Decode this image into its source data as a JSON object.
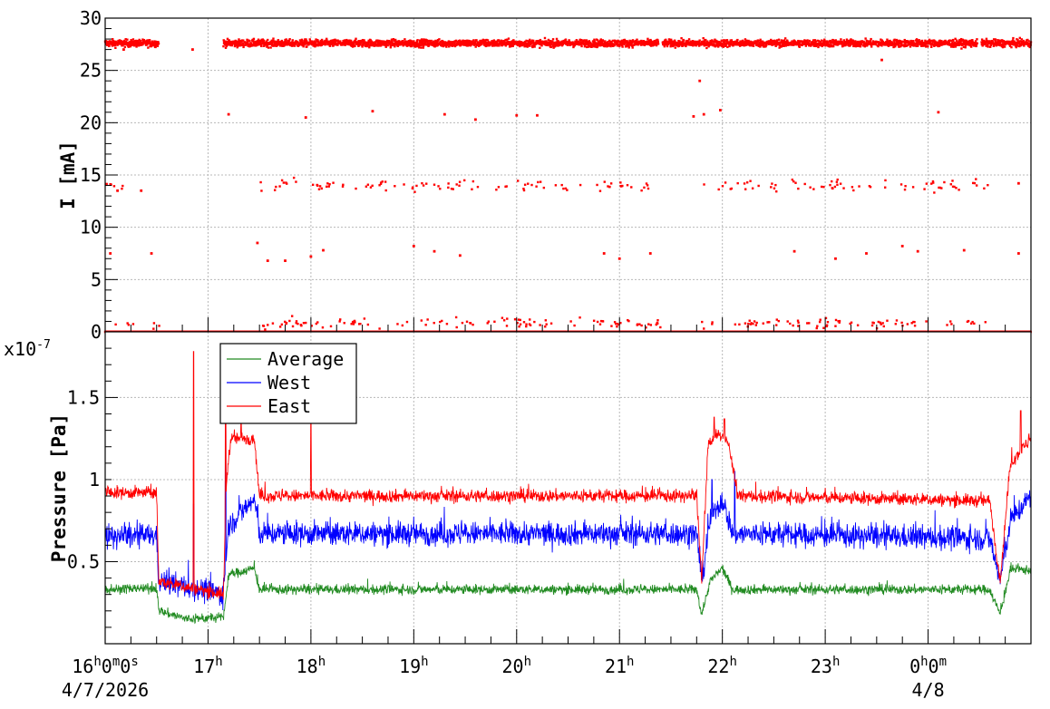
{
  "chart_data": [
    {
      "type": "scatter",
      "panel": "current",
      "ylabel": "I [mA]",
      "ylim": [
        0,
        30
      ],
      "yticks": [
        0,
        5,
        10,
        15,
        20,
        25,
        30
      ],
      "grid": true,
      "series": [
        {
          "color": "#ff0000",
          "clusters": [
            {
              "level": 27.6,
              "spread": 0.35,
              "segments": [
                [
                  0.0,
                  0.52
                ],
                [
                  1.15,
                  5.38
                ],
                [
                  5.42,
                  8.48
                ],
                [
                  8.52,
                  9.0
                ]
              ]
            },
            {
              "level": 14.0,
              "spread": 0.6,
              "segments": [
                [
                  0.0,
                  0.2
                ],
                [
                  1.5,
                  5.4
                ],
                [
                  5.8,
                  8.6
                ]
              ],
              "density": 0.06
            },
            {
              "level": 0.0,
              "spread": 0.0,
              "segments": [
                [
                  0.0,
                  9.0
                ]
              ]
            },
            {
              "level": 0.8,
              "spread": 0.5,
              "segments": [
                [
                  0.0,
                  0.6
                ],
                [
                  1.5,
                  5.4
                ],
                [
                  5.8,
                  8.6
                ]
              ],
              "density": 0.06
            }
          ],
          "outliers": [
            {
              "x": 0.05,
              "y": 7.5
            },
            {
              "x": 0.45,
              "y": 7.5
            },
            {
              "x": 0.12,
              "y": 13.5
            },
            {
              "x": 0.35,
              "y": 13.5
            },
            {
              "x": 0.85,
              "y": 27.0
            },
            {
              "x": 1.2,
              "y": 20.8
            },
            {
              "x": 1.48,
              "y": 8.5
            },
            {
              "x": 1.58,
              "y": 6.8
            },
            {
              "x": 1.75,
              "y": 6.8
            },
            {
              "x": 1.95,
              "y": 20.5
            },
            {
              "x": 2.0,
              "y": 7.2
            },
            {
              "x": 2.12,
              "y": 7.8
            },
            {
              "x": 2.6,
              "y": 21.1
            },
            {
              "x": 3.0,
              "y": 8.2
            },
            {
              "x": 3.2,
              "y": 7.7
            },
            {
              "x": 3.3,
              "y": 20.8
            },
            {
              "x": 3.45,
              "y": 7.3
            },
            {
              "x": 3.6,
              "y": 20.3
            },
            {
              "x": 4.0,
              "y": 20.7
            },
            {
              "x": 4.2,
              "y": 20.7
            },
            {
              "x": 4.85,
              "y": 7.5
            },
            {
              "x": 5.0,
              "y": 7.0
            },
            {
              "x": 5.3,
              "y": 7.5
            },
            {
              "x": 5.72,
              "y": 20.6
            },
            {
              "x": 5.78,
              "y": 24.0
            },
            {
              "x": 5.82,
              "y": 20.8
            },
            {
              "x": 5.98,
              "y": 21.2
            },
            {
              "x": 6.7,
              "y": 7.7
            },
            {
              "x": 7.1,
              "y": 7.0
            },
            {
              "x": 7.4,
              "y": 7.5
            },
            {
              "x": 7.55,
              "y": 26.0
            },
            {
              "x": 7.75,
              "y": 8.2
            },
            {
              "x": 7.9,
              "y": 7.7
            },
            {
              "x": 8.1,
              "y": 21.0
            },
            {
              "x": 8.35,
              "y": 7.8
            },
            {
              "x": 8.88,
              "y": 7.5
            },
            {
              "x": 8.88,
              "y": 14.2
            },
            {
              "x": 0.18,
              "y": 27.0
            }
          ]
        }
      ]
    },
    {
      "type": "line",
      "panel": "pressure",
      "ylabel": "Pressure [Pa]",
      "multiplier": "x10",
      "multiplier_exp": "-7",
      "ylim": [
        0,
        1.9
      ],
      "yticks": [
        0.5,
        1,
        1.5
      ],
      "ytick_labels": [
        "0.5",
        "1",
        "1.5"
      ],
      "grid": true,
      "legend_position": "top-left",
      "series": [
        {
          "name": "Average",
          "color": "#228b22",
          "knots": [
            [
              0.0,
              0.33
            ],
            [
              0.5,
              0.34
            ],
            [
              0.52,
              0.2
            ],
            [
              0.8,
              0.15
            ],
            [
              1.15,
              0.16
            ],
            [
              1.2,
              0.42
            ],
            [
              1.45,
              0.46
            ],
            [
              1.5,
              0.33
            ],
            [
              5.75,
              0.33
            ],
            [
              5.8,
              0.18
            ],
            [
              5.88,
              0.38
            ],
            [
              6.0,
              0.46
            ],
            [
              6.1,
              0.33
            ],
            [
              8.6,
              0.33
            ],
            [
              8.7,
              0.18
            ],
            [
              8.8,
              0.45
            ],
            [
              9.0,
              0.45
            ]
          ],
          "noise": 0.03,
          "spikes": []
        },
        {
          "name": "West",
          "color": "#0000ff",
          "knots": [
            [
              0.0,
              0.65
            ],
            [
              0.5,
              0.66
            ],
            [
              0.52,
              0.38
            ],
            [
              1.15,
              0.3
            ],
            [
              1.2,
              0.72
            ],
            [
              1.45,
              0.88
            ],
            [
              1.5,
              0.67
            ],
            [
              5.75,
              0.67
            ],
            [
              5.8,
              0.38
            ],
            [
              5.88,
              0.75
            ],
            [
              6.0,
              0.88
            ],
            [
              6.1,
              0.67
            ],
            [
              8.6,
              0.64
            ],
            [
              8.7,
              0.38
            ],
            [
              8.8,
              0.75
            ],
            [
              9.0,
              0.9
            ]
          ],
          "noise": 0.075,
          "spikes": [
            [
              0.86,
              0.85
            ],
            [
              1.17,
              1.55
            ],
            [
              5.9,
              1.0
            ],
            [
              6.12,
              1.05
            ]
          ]
        },
        {
          "name": "East",
          "color": "#ff0000",
          "knots": [
            [
              0.0,
              0.92
            ],
            [
              0.5,
              0.92
            ],
            [
              0.52,
              0.38
            ],
            [
              1.15,
              0.3
            ],
            [
              1.18,
              1.0
            ],
            [
              1.22,
              1.25
            ],
            [
              1.45,
              1.25
            ],
            [
              1.5,
              0.9
            ],
            [
              5.75,
              0.9
            ],
            [
              5.8,
              0.38
            ],
            [
              5.86,
              1.2
            ],
            [
              5.95,
              1.28
            ],
            [
              6.05,
              1.25
            ],
            [
              6.15,
              0.9
            ],
            [
              8.6,
              0.87
            ],
            [
              8.7,
              0.38
            ],
            [
              8.8,
              1.1
            ],
            [
              9.0,
              1.25
            ]
          ],
          "noise": 0.04,
          "spikes": [
            [
              0.86,
              1.78
            ],
            [
              1.17,
              1.62
            ],
            [
              1.32,
              1.35
            ],
            [
              2.0,
              1.35
            ],
            [
              5.92,
              1.38
            ],
            [
              6.02,
              1.37
            ],
            [
              8.9,
              1.42
            ]
          ]
        }
      ]
    }
  ],
  "x_axis": {
    "range_hours": [
      0,
      9.0
    ],
    "ticks": [
      {
        "hour": 0,
        "label": "16",
        "sub": "h",
        "label2": "0",
        "sub2": "m",
        "label3": "0",
        "sub3": "s",
        "date": "4/7/2026"
      },
      {
        "hour": 1,
        "label": "17",
        "sub": "h"
      },
      {
        "hour": 2,
        "label": "18",
        "sub": "h"
      },
      {
        "hour": 3,
        "label": "19",
        "sub": "h"
      },
      {
        "hour": 4,
        "label": "20",
        "sub": "h"
      },
      {
        "hour": 5,
        "label": "21",
        "sub": "h"
      },
      {
        "hour": 6,
        "label": "22",
        "sub": "h"
      },
      {
        "hour": 7,
        "label": "23",
        "sub": "h"
      },
      {
        "hour": 8,
        "label": "0",
        "sub": "h",
        "label2": "0",
        "sub2": "m",
        "date": "4/8"
      }
    ]
  }
}
